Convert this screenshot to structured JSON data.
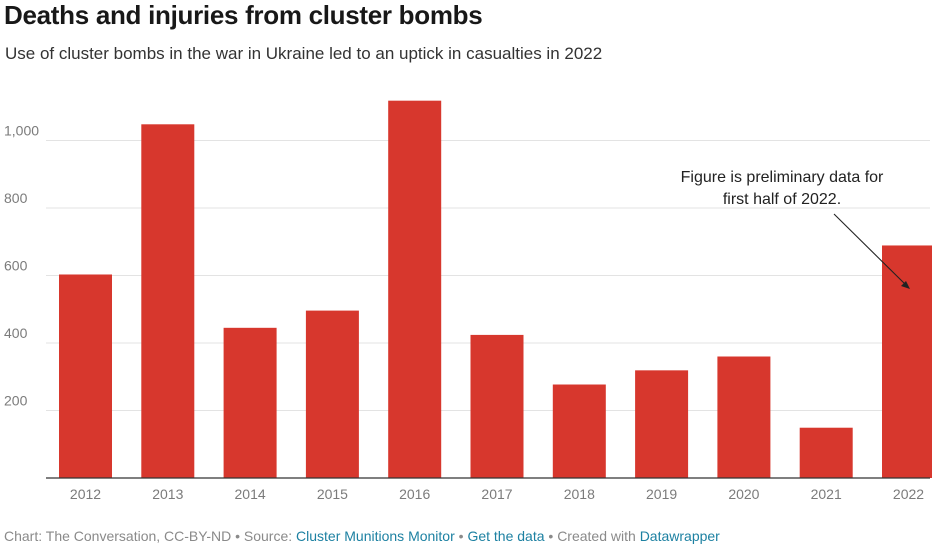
{
  "header": {
    "title": "Deaths and injuries from cluster bombs",
    "subtitle": "Use of cluster bombs in the war in Ukraine led to an uptick in casualties in 2022"
  },
  "chart_data": {
    "type": "bar",
    "title": "Deaths and injuries from cluster bombs",
    "subtitle": "Use of cluster bombs in the war in Ukraine led to an uptick in casualties in 2022",
    "categories": [
      "2012",
      "2013",
      "2014",
      "2015",
      "2016",
      "2017",
      "2018",
      "2019",
      "2020",
      "2021",
      "2022"
    ],
    "values": [
      603,
      1048,
      445,
      496,
      1118,
      424,
      277,
      319,
      360,
      149,
      689
    ],
    "color": "#d7372d",
    "xlabel": "",
    "ylabel": "",
    "ylim": [
      0,
      1200
    ],
    "yticks": [
      200,
      400,
      600,
      800,
      1000
    ],
    "ytick_labels": [
      "200",
      "400",
      "600",
      "800",
      "1,000"
    ],
    "grid": true,
    "annotation": {
      "lines": [
        "Figure is preliminary data for",
        "first half of 2022."
      ],
      "target": "2022"
    }
  },
  "footer": {
    "prefix": "Chart: The Conversation, CC-BY-ND • Source: ",
    "source_link": "Cluster Munitions Monitor",
    "sep1": " • ",
    "data_link": "Get the data",
    "sep2": " • Created with ",
    "tool_link": "Datawrapper"
  }
}
